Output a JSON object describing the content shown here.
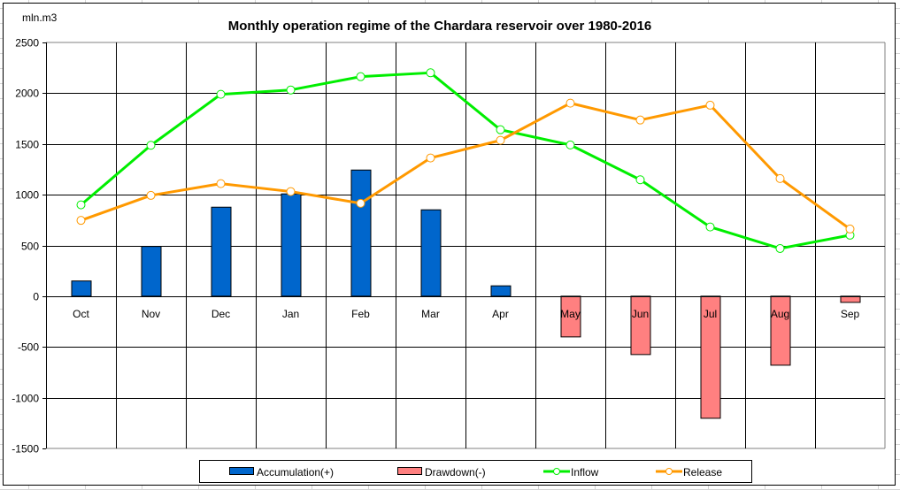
{
  "chart_data": {
    "type": "bar",
    "title": "Monthly operation regime of the Chardara reservoir over 1980-2016",
    "ylabel": "mln.m3",
    "xlabel": "",
    "ylim": [
      -1500,
      2500
    ],
    "yticks": [
      2500,
      2000,
      1500,
      1000,
      500,
      0,
      -500,
      -1000,
      -1500
    ],
    "grid": true,
    "legend_position": "bottom",
    "categories": [
      "Oct",
      "Nov",
      "Dec",
      "Jan",
      "Feb",
      "Mar",
      "Apr",
      "May",
      "Jun",
      "Jul",
      "Aug",
      "Sep"
    ],
    "series": [
      {
        "name": "Accumulation(+)",
        "kind": "bar",
        "color": "#0066cc",
        "values": [
          150,
          490,
          877,
          1008,
          1243,
          851,
          102,
          0,
          0,
          0,
          0,
          0
        ]
      },
      {
        "name": "Drawdown(-)",
        "kind": "bar",
        "color": "#ff8080",
        "values": [
          0,
          0,
          0,
          0,
          0,
          0,
          0,
          -401,
          -575,
          -1203,
          -680,
          -61
        ]
      },
      {
        "name": "Inflow",
        "kind": "line",
        "color": "#00ee00",
        "values": [
          900,
          1487,
          1989,
          2032,
          2163,
          2201,
          1640,
          1490,
          1147,
          682,
          470,
          601
        ]
      },
      {
        "name": "Release",
        "kind": "line",
        "color": "#ff9900",
        "values": [
          747,
          993,
          1109,
          1031,
          915,
          1362,
          1536,
          1902,
          1736,
          1882,
          1159,
          662
        ]
      }
    ]
  }
}
